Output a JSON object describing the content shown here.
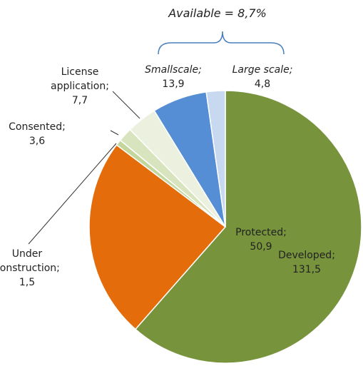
{
  "chart_data": {
    "type": "pie",
    "categories": [
      "Developed;",
      "Protected;",
      "Under construction;",
      "Consented;",
      "License application;",
      "Smallscale;",
      "Large scale;"
    ],
    "values": [
      131.5,
      50.9,
      1.5,
      3.6,
      7.7,
      13.9,
      4.8
    ],
    "value_labels": [
      "131,5",
      "50,9",
      "1,5",
      "3,6",
      "7,7",
      "13,9",
      "4,8"
    ],
    "colors": [
      "#77933c",
      "#e46c0a",
      "#c3d69b",
      "#d7e4bd",
      "#ebf1de",
      "#558ed5",
      "#c6d9f1"
    ],
    "annotation": "Available = 8,7%"
  }
}
